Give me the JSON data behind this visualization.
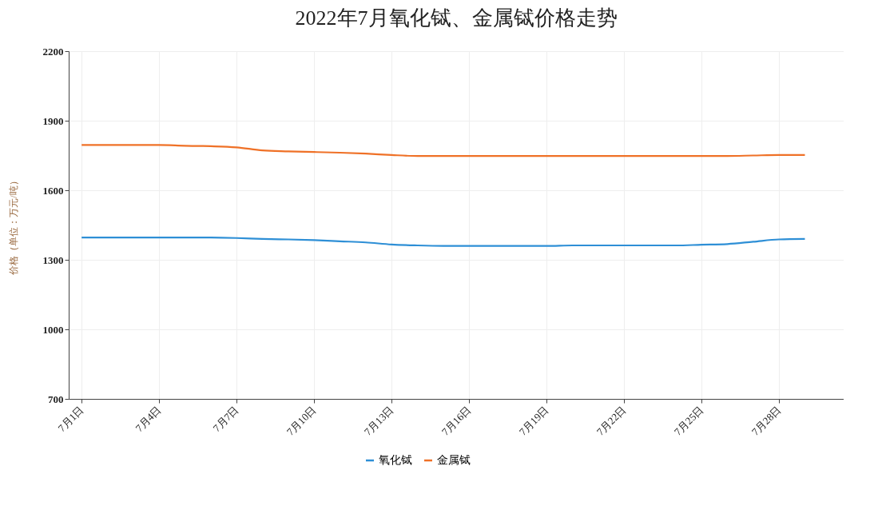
{
  "chart_data": {
    "type": "line",
    "title": "2022年7月氧化铽、金属铽价格走势",
    "ylabel": "价格（单位：万元/吨）",
    "categories": [
      "7月1日",
      null,
      null,
      "7月4日",
      null,
      null,
      "7月7日",
      null,
      null,
      "7月10日",
      null,
      null,
      "7月13日",
      null,
      null,
      "7月16日",
      null,
      null,
      "7月19日",
      null,
      null,
      "7月22日",
      null,
      null,
      "7月25日",
      null,
      null,
      "7月28日",
      null,
      null
    ],
    "series": [
      {
        "name": "氧化铽",
        "color": "#2e8fd6",
        "values": [
          1396,
          1396,
          1396,
          1396,
          1396,
          1396,
          1394,
          1390,
          1388,
          1385,
          1380,
          1375,
          1366,
          1362,
          1360,
          1360,
          1360,
          1360,
          1360,
          1362,
          1362,
          1362,
          1362,
          1362,
          1365,
          1368,
          1378,
          1388,
          1390,
          null
        ]
      },
      {
        "name": "金属铽",
        "color": "#ef7127",
        "values": [
          1795,
          1795,
          1795,
          1795,
          1792,
          1790,
          1785,
          1772,
          1768,
          1765,
          1762,
          1758,
          1752,
          1748,
          1748,
          1748,
          1748,
          1748,
          1748,
          1748,
          1748,
          1748,
          1748,
          1748,
          1748,
          1748,
          1750,
          1752,
          1752,
          null
        ]
      }
    ],
    "ylim": [
      700,
      2200
    ],
    "yticks": [
      700,
      1000,
      1300,
      1600,
      1900,
      2200
    ],
    "grid": true,
    "legend": "bottom",
    "marker": "none",
    "line_style": "solid"
  }
}
